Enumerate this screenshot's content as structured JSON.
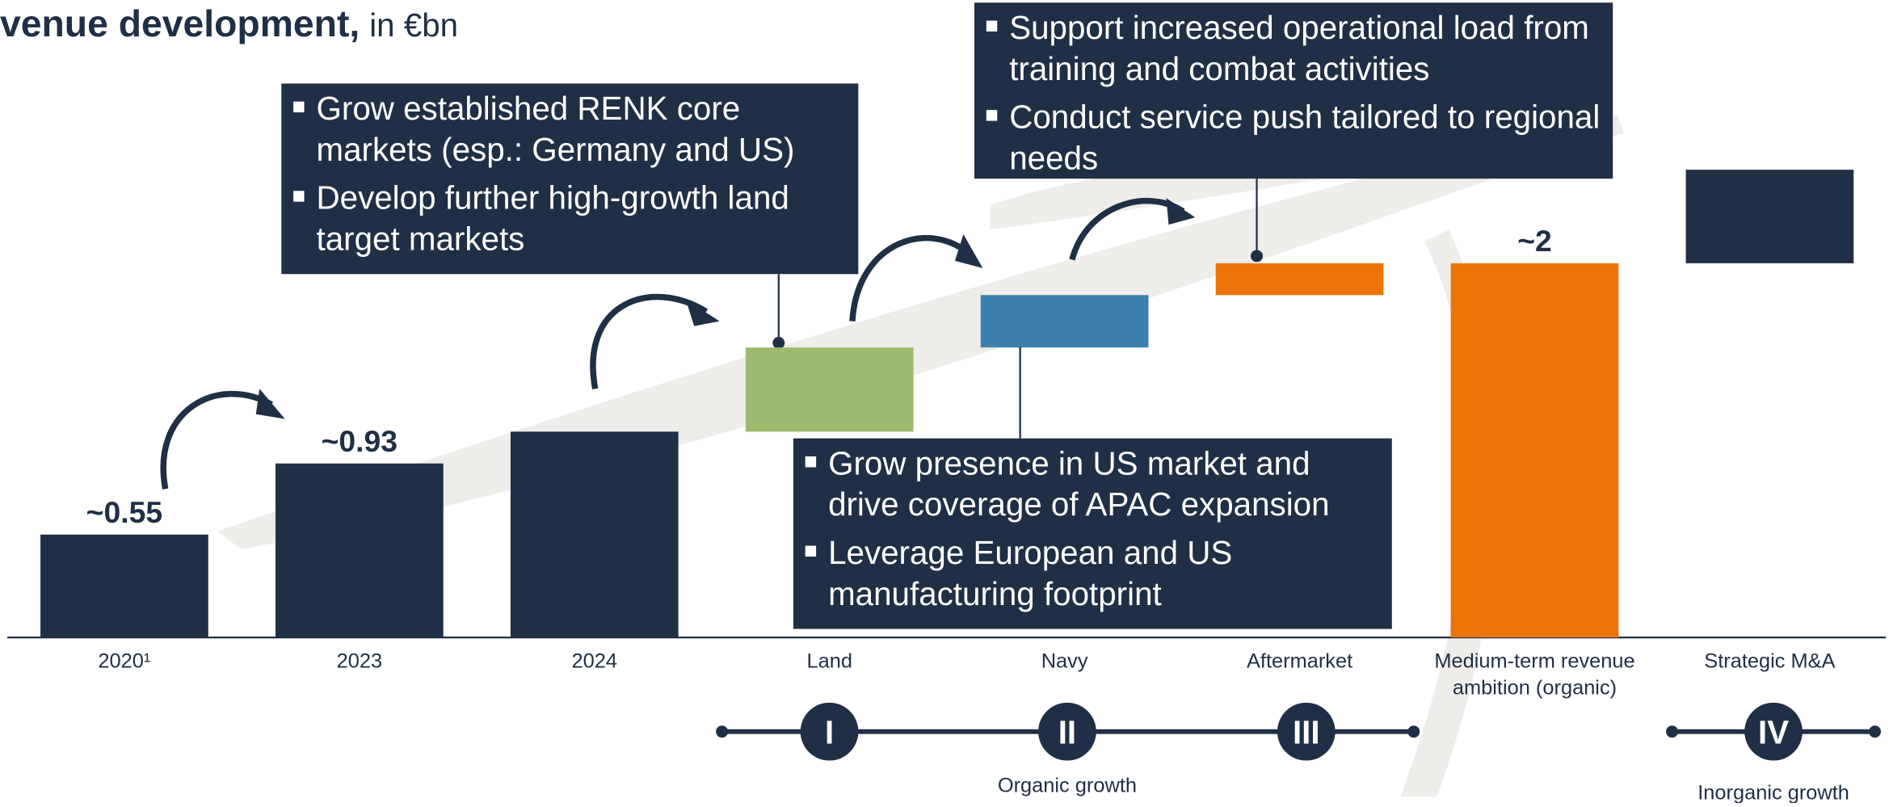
{
  "chart_data": {
    "type": "waterfall",
    "title": "venue development,",
    "subtitle": "in €bn",
    "categories": [
      "2020¹",
      "2023",
      "2024",
      "Land",
      "Navy",
      "Aftermarket",
      "Medium-term revenue ambition (organic)",
      "Strategic M&A"
    ],
    "values": [
      0.55,
      0.93,
      1.1,
      0.45,
      0.28,
      0.17,
      2,
      0.5
    ],
    "value_labels": [
      "~0.55",
      "~0.93",
      null,
      null,
      null,
      null,
      "~2",
      null
    ],
    "bar_kinds": [
      "absolute",
      "absolute",
      "absolute",
      "delta",
      "delta",
      "delta",
      "total",
      "delta"
    ],
    "colors": [
      "#1f2f45",
      "#1f2f45",
      "#1f2f45",
      "#9cba6e",
      "#3a80ab",
      "#ec7405",
      "#ec7405",
      "#1f2f45"
    ],
    "ylim": [
      0,
      2.6
    ],
    "callouts": [
      {
        "bullets": [
          "Grow established RENK core markets (esp.: Germany and US)",
          "Develop further high-growth land target markets"
        ]
      },
      {
        "bullets": [
          "Support increased operational load from training and combat activities",
          "Conduct service push tailored to regional needs"
        ]
      },
      {
        "bullets": [
          "Grow presence in US market and drive coverage of APAC expansion",
          "Leverage European and US manufacturing footprint"
        ]
      }
    ],
    "phase_labels": [
      "I",
      "II",
      "III",
      "IV"
    ],
    "group_labels": [
      "Organic growth",
      "Inorganic growth"
    ]
  }
}
